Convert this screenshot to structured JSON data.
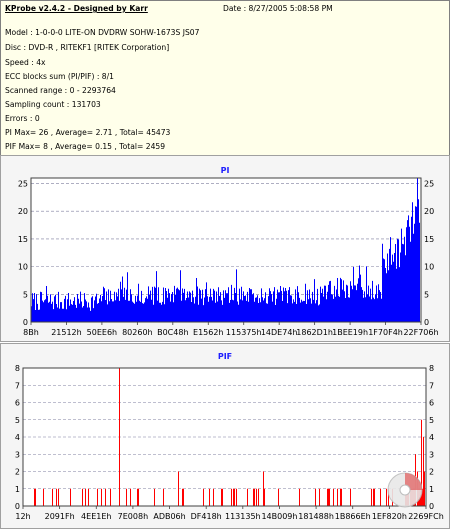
{
  "info": {
    "title": "KProbe v2.4.2 - Designed by Karr",
    "date": "Date : 8/27/2005 5:08:58 PM",
    "lines": [
      "Model : 1-0-0-0 LITE-ON DVDRW SOHW-1673S JS07",
      "Disc : DVD-R , RITEKF1 [RITEK Corporation]",
      "Speed : 4x",
      "ECC blocks sum (PI/PIF) : 8/1",
      "Scanned range : 0 - 2293764",
      "Sampling count : 131703",
      "Errors : 0",
      "PI Max= 26 , Average= 2.71 , Total= 45473",
      "PIF Max= 8 , Average= 0.15 , Total= 2459"
    ]
  },
  "chart_data": [
    {
      "type": "bar",
      "title": "PI",
      "color": "#0000ff",
      "ylim": [
        0,
        26
      ],
      "yticks": [
        0,
        5,
        10,
        15,
        20,
        25
      ],
      "xticks": [
        "8Bh",
        "21512h",
        "50EE6h",
        "80260h",
        "B0C48h",
        "E1562h",
        "115375h",
        "14DE74h",
        "1862D1h",
        "1BEE19h",
        "1F70F4h",
        "22F706h"
      ],
      "grid": true,
      "max": 26,
      "average": 2.71,
      "total": 45473
    },
    {
      "type": "bar",
      "title": "PIF",
      "color": "#ff0000",
      "ylim": [
        0,
        8
      ],
      "yticks": [
        0,
        1,
        2,
        3,
        4,
        5,
        6,
        7,
        8
      ],
      "xticks": [
        "12h",
        "2091Fh",
        "4EE1Eh",
        "7E008h",
        "ADB06h",
        "DF418h",
        "113135h",
        "14B009h",
        "181488h",
        "1B866Eh",
        "1EF820h",
        "2269FCh"
      ],
      "grid": true,
      "max": 8,
      "average": 0.15,
      "total": 2459
    }
  ]
}
